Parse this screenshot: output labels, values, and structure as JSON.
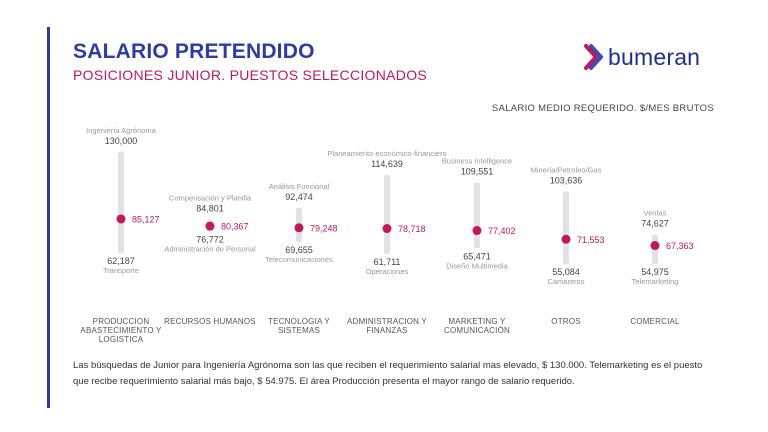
{
  "header": {
    "title": "SALARIO PRETENDIDO",
    "subtitle": "POSICIONES JUNIOR. PUESTOS SELECCIONADOS",
    "unit_label": "SALARIO MEDIO REQUERIDO. $/MES BRUTOS"
  },
  "logo": {
    "text": "bumeran",
    "icon": "chevron-arrow-icon"
  },
  "colors": {
    "accent": "#2d3aa8",
    "point": "#c2185b",
    "range_bar": "#e2e2e2"
  },
  "chart_data": {
    "type": "range",
    "categories": [
      {
        "label": [
          "PRODUCCION",
          "ABASTECIMIENTO Y",
          "LOGISTICA"
        ],
        "min": 62187,
        "avg": 85127,
        "max": 130000,
        "min_label": "62,187",
        "avg_label": "85,127",
        "max_label": "130,000",
        "max_role": "Ingeniería Agrónoma",
        "min_role": "Transporte"
      },
      {
        "label": [
          "RECURSOS HUMANOS"
        ],
        "min": 76772,
        "avg": 80367,
        "max": 84801,
        "min_label": "76,772",
        "avg_label": "80,367",
        "max_label": "84,801",
        "max_role": "Compensación y Planilla",
        "min_role": "Administración de Personal"
      },
      {
        "label": [
          "TECNOLOGIA Y",
          "SISTEMAS"
        ],
        "min": 69655,
        "avg": 79248,
        "max": 92474,
        "min_label": "69,655",
        "avg_label": "79,248",
        "max_label": "92,474",
        "max_role": "Análisis Funcional",
        "min_role": "Telecomunicaciones"
      },
      {
        "label": [
          "ADMINISTRACION Y",
          "FINANZAS"
        ],
        "min": 61711,
        "avg": 78718,
        "max": 114639,
        "min_label": "61,711",
        "avg_label": "78,718",
        "max_label": "114,639",
        "max_role": "Planeamiento económico-financiero",
        "min_role": "Operaciones"
      },
      {
        "label": [
          "MARKETING Y",
          "COMUNICACIÓN"
        ],
        "min": 65471,
        "avg": 77402,
        "max": 109551,
        "min_label": "65,471",
        "avg_label": "77,402",
        "max_label": "109,551",
        "max_role": "Business Intelligence",
        "min_role": "Diseño Multimedia"
      },
      {
        "label": [
          "OTROS"
        ],
        "min": 55084,
        "avg": 71553,
        "max": 103636,
        "min_label": "55,084",
        "avg_label": "71,553",
        "max_label": "103,636",
        "max_role": "Minería/Petroleo/Gas",
        "min_role": "Camareros"
      },
      {
        "label": [
          "COMERCIAL"
        ],
        "min": 54975,
        "avg": 67363,
        "max": 74627,
        "min_label": "54,975",
        "avg_label": "67,363",
        "max_label": "74,627",
        "max_role": "Ventas",
        "min_role": "Telemarketing"
      }
    ]
  },
  "footnote": "Las búsquedas de Junior para Ingeniería Agrónoma son las que reciben el requerimiento salarial mas elevado, $ 130.000. Telemarketing es el puesto que recibe requerimiento salarial más bajo, $ 54.975.  El área Producción presenta el mayor rango de salario requerido."
}
